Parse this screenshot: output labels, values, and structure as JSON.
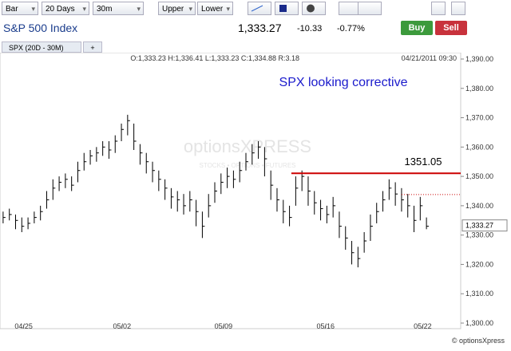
{
  "toolbar": {
    "chart_type": "Bar",
    "period": "20 Days",
    "interval": "30m",
    "upper": "Upper",
    "lower": "Lower"
  },
  "header": {
    "name": "S&P 500 Index",
    "change": "-10.33",
    "change_percent": "-0.77%",
    "buy": "Buy",
    "sell": "Sell",
    "tab": "SPX (20D - 30M)",
    "add_tab": "+",
    "ohlc": "O:1,333.23  H:1,336.41  L:1,333.23  C:1,334.88  R:3.18",
    "timestamp": "04/21/2011 09:30"
  },
  "watermark": {
    "logo": "optionsXPRESS",
    "tagline": "STOCKS • OPTIONS • FUTURES",
    "copyright": "© optionsXpress"
  },
  "chart_data": {
    "type": "ohlc",
    "annotation": "SPX looking corrective",
    "resistance": 1351.05,
    "resistance_color": "#cc0000",
    "dotted_level": 1343.8,
    "last_price": {
      "value": 1333.27,
      "label": "1,333.27"
    },
    "color": "#000000",
    "xlim": [
      -0.5,
      73.5
    ],
    "xticks": [
      {
        "value": 3.3,
        "label": "04/25"
      },
      {
        "value": 19.1,
        "label": "05/02"
      },
      {
        "value": 35.4,
        "label": "05/09"
      },
      {
        "value": 51.8,
        "label": "05/16"
      },
      {
        "value": 67.4,
        "label": "05/22"
      }
    ],
    "ylim": [
      1300,
      1390
    ],
    "yticks": [
      {
        "value": 1300,
        "label": "1,300.00"
      },
      {
        "value": 1310,
        "label": "1,310.00"
      },
      {
        "value": 1320,
        "label": "1,320.00"
      },
      {
        "value": 1330,
        "label": "1,330.00"
      },
      {
        "value": 1340,
        "label": "1,340.00"
      },
      {
        "value": 1350,
        "label": "1,350.00"
      },
      {
        "value": 1360,
        "label": "1,360.00"
      },
      {
        "value": 1370,
        "label": "1,370.00"
      },
      {
        "value": 1380,
        "label": "1,380.00"
      },
      {
        "value": 1390,
        "label": "1,390.00"
      }
    ],
    "high": [
      1338,
      1339,
      1337,
      1336,
      1336,
      1338,
      1340,
      1345,
      1349,
      1350,
      1351,
      1350,
      1355,
      1358,
      1359,
      1360,
      1362,
      1362,
      1364,
      1368,
      1371,
      1368,
      1361,
      1358,
      1355,
      1352,
      1349,
      1346,
      1345,
      1344,
      1345,
      1342,
      1338,
      1344,
      1348,
      1351,
      1353,
      1352,
      1355,
      1358,
      1361,
      1362,
      1360,
      1352,
      1346,
      1342,
      1340,
      1350,
      1352,
      1350,
      1345,
      1342,
      1340,
      1343,
      1338,
      1333,
      1328,
      1326,
      1331,
      1337,
      1341,
      1345,
      1349,
      1348,
      1346,
      1344,
      1340,
      1343,
      1336
    ],
    "low": [
      1334,
      1335,
      1332,
      1331,
      1332,
      1334,
      1335,
      1339,
      1342,
      1345,
      1346,
      1345,
      1348,
      1352,
      1354,
      1355,
      1357,
      1356,
      1358,
      1362,
      1364,
      1359,
      1354,
      1351,
      1348,
      1345,
      1342,
      1339,
      1338,
      1337,
      1338,
      1333,
      1329,
      1336,
      1341,
      1344,
      1346,
      1346,
      1348,
      1352,
      1354,
      1356,
      1350,
      1342,
      1338,
      1334,
      1333,
      1340,
      1345,
      1340,
      1337,
      1335,
      1334,
      1336,
      1329,
      1325,
      1320,
      1319,
      1324,
      1328,
      1334,
      1338,
      1342,
      1340,
      1338,
      1336,
      1331,
      1335,
      1332
    ],
    "close": [
      1336,
      1337,
      1335,
      1333,
      1334,
      1336,
      1338,
      1342,
      1346,
      1348,
      1349,
      1347,
      1352,
      1355,
      1357,
      1358,
      1360,
      1359,
      1362,
      1366,
      1369,
      1362,
      1358,
      1355,
      1352,
      1349,
      1346,
      1343,
      1342,
      1340,
      1342,
      1338,
      1333,
      1340,
      1345,
      1348,
      1350,
      1349,
      1352,
      1355,
      1358,
      1360,
      1356,
      1347,
      1342,
      1338,
      1336,
      1346,
      1350,
      1345,
      1341,
      1339,
      1337,
      1340,
      1333,
      1329,
      1324,
      1322,
      1328,
      1333,
      1338,
      1342,
      1346,
      1344,
      1342,
      1340,
      1335,
      1340,
      1333
    ]
  }
}
